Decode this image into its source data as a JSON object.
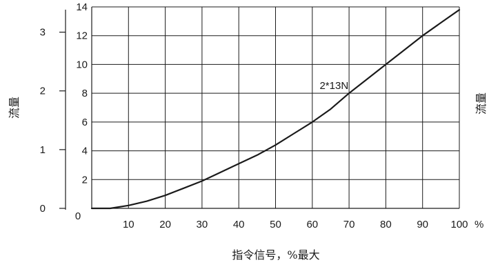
{
  "chart_data": {
    "type": "line",
    "xlabel": "指令信号，%最大",
    "xlabel_unit": "%",
    "ylabel_left": "流量",
    "ylabel_right": "流量",
    "x_ticks": [
      "10",
      "20",
      "30",
      "40",
      "50",
      "60",
      "70",
      "80",
      "90",
      "100"
    ],
    "x_origin_label": "0",
    "xlim": [
      0,
      100
    ],
    "y_inner_ticks": [
      "2",
      "4",
      "6",
      "8",
      "10",
      "12",
      "14"
    ],
    "y_inner_lim": [
      0,
      14
    ],
    "y_outer_ticks": [
      "0",
      "1",
      "2",
      "3"
    ],
    "y_outer_lim": [
      0,
      3.43
    ],
    "grid": true,
    "series": [
      {
        "name": "2*13N",
        "x": [
          0,
          5,
          10,
          15,
          20,
          25,
          30,
          35,
          40,
          45,
          50,
          55,
          60,
          65,
          70,
          75,
          80,
          85,
          90,
          95,
          100
        ],
        "y": [
          0.0,
          0.0,
          0.2,
          0.5,
          0.9,
          1.4,
          1.9,
          2.5,
          3.1,
          3.7,
          4.4,
          5.2,
          6.0,
          6.9,
          8.0,
          9.0,
          10.0,
          11.0,
          12.0,
          12.9,
          13.8
        ]
      }
    ],
    "annotations": [
      {
        "text": "2*13N",
        "x": 62,
        "y": 8.3
      }
    ]
  }
}
